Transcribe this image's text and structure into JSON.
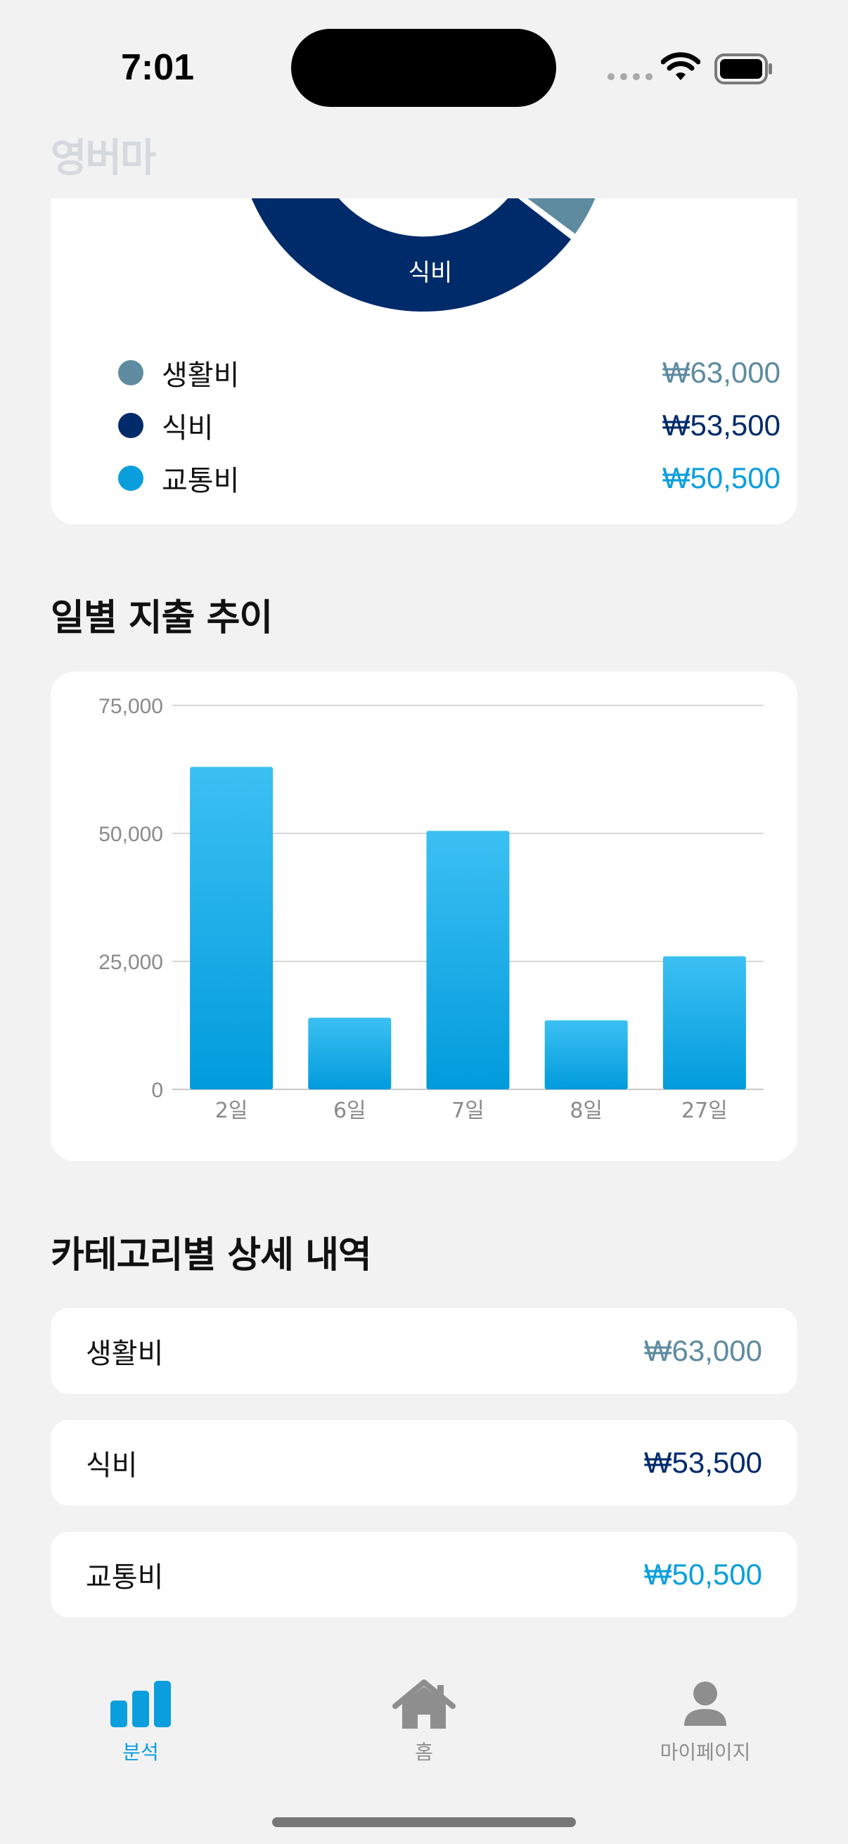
{
  "status": {
    "time": "7:01"
  },
  "app": {
    "logo": "영버마"
  },
  "colors": {
    "living": "#5e8ba0",
    "food": "#002b6b",
    "transport": "#0a9fdc",
    "tab_active": "#0a9fdc",
    "tab_inactive": "#8e8e8e"
  },
  "donut": {
    "slice_label": "식비",
    "legend": [
      {
        "name": "생활비",
        "amount": "₩63,000",
        "color": "#5e8ba0"
      },
      {
        "name": "식비",
        "amount": "₩53,500",
        "color": "#002b6b"
      },
      {
        "name": "교통비",
        "amount": "₩50,500",
        "color": "#0a9fdc"
      }
    ]
  },
  "daily": {
    "title": "일별 지출 추이"
  },
  "chart_data": {
    "type": "bar",
    "categories": [
      "2일",
      "6일",
      "7일",
      "8일",
      "27일"
    ],
    "values": [
      63000,
      14000,
      50500,
      13500,
      26000
    ],
    "ylim": [
      0,
      75000
    ],
    "yticks": [
      "0",
      "25,000",
      "50,000",
      "75,000"
    ],
    "grid": true,
    "bar_color": "#0a9fdc"
  },
  "detail": {
    "title": "카테고리별 상세 내역",
    "rows": [
      {
        "name": "생활비",
        "amount": "₩63,000"
      },
      {
        "name": "식비",
        "amount": "₩53,500"
      },
      {
        "name": "교통비",
        "amount": "₩50,500"
      }
    ]
  },
  "tabs": [
    {
      "label": "분석",
      "icon": "bar-chart-icon",
      "active": true
    },
    {
      "label": "홈",
      "icon": "house-icon",
      "active": false
    },
    {
      "label": "마이페이지",
      "icon": "person-icon",
      "active": false
    }
  ]
}
